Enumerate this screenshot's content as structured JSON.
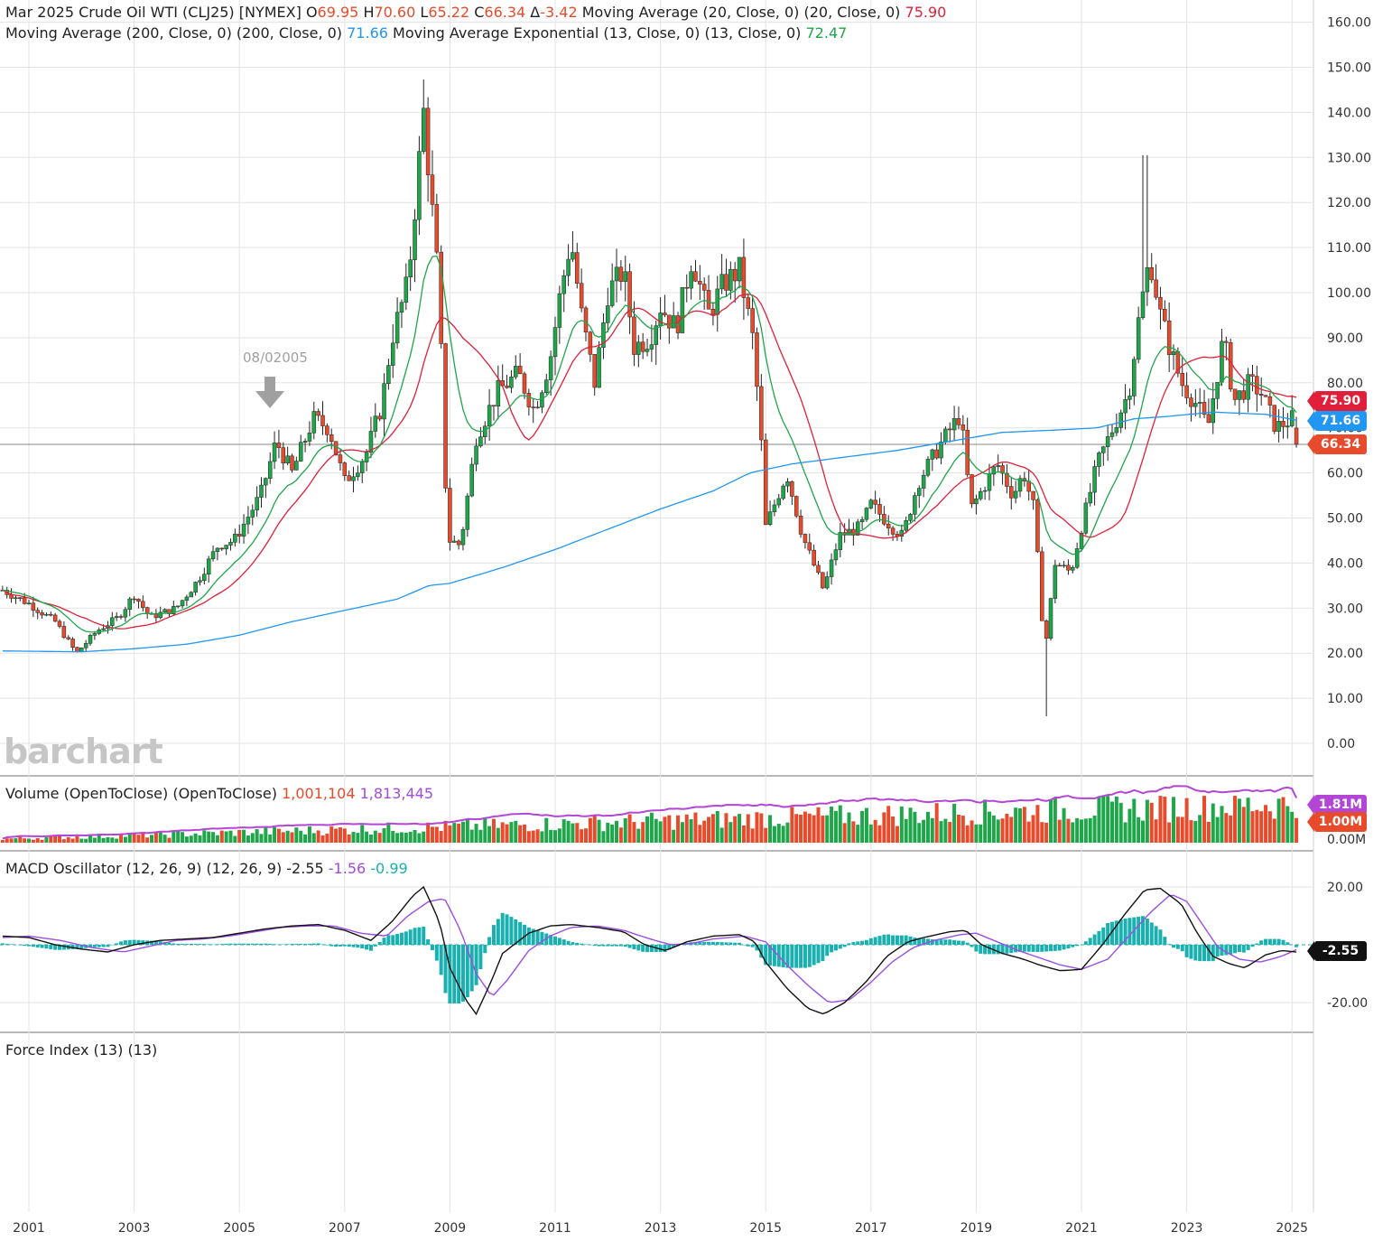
{
  "header": {
    "instrument": "Mar 2025 Crude Oil WTI (CLJ25) [NYMEX]",
    "open_label": "O",
    "open": "69.95",
    "high_label": "H",
    "high": "70.60",
    "low_label": "L",
    "low": "65.22",
    "close_label": "C",
    "close": "66.34",
    "change_label": "Δ",
    "change": "-3.42",
    "ma20_label": "Moving Average (20, Close, 0)  (20, Close, 0)",
    "ma20_value": "75.90",
    "ma200_label": "Moving Average (200, Close, 0)  (200, Close, 0)",
    "ma200_value": "71.66",
    "ema13_label": "Moving Average Exponential (13, Close, 0)  (13, Close, 0)",
    "ema13_value": "72.47"
  },
  "annotation": {
    "text": "08/02005"
  },
  "logo": "barchart",
  "volume_panel": {
    "label": "Volume (OpenToClose)  (OpenToClose)",
    "value1": "1,001,104",
    "value2": "1,813,445"
  },
  "macd_panel": {
    "label": "MACD Oscillator (12, 26, 9)  (12, 26, 9)",
    "value1": "-2.55",
    "value2": "-1.56",
    "value3": "-0.99"
  },
  "force_panel": {
    "label": "Force Index (13)  (13)"
  },
  "price_tags": {
    "ma20": "75.90",
    "ma200": "71.66",
    "close": "66.34"
  },
  "volume_tags": {
    "avg": "1.81M",
    "current": "1.00M",
    "zero": "0.00M"
  },
  "macd_tag": "-2.55",
  "colors": {
    "up": "#1fa64a",
    "down": "#e84b2c",
    "ma20": "#e0203a",
    "ma200": "#2196f3",
    "ema13": "#1fa64a",
    "vol_avg": "#b446d6",
    "macd": "#111111",
    "signal": "#9b4fe0",
    "hist": "#1ab0b0"
  },
  "chart_data": {
    "type": "candlestick",
    "timeframe": "monthly",
    "x_ticks": [
      "2001",
      "2003",
      "2005",
      "2007",
      "2009",
      "2011",
      "2013",
      "2015",
      "2017",
      "2019",
      "2021",
      "2023",
      "2025"
    ],
    "price_axis": {
      "ticks": [
        "0.00",
        "10.00",
        "20.00",
        "30.00",
        "40.00",
        "50.00",
        "60.00",
        "70.00",
        "80.00",
        "90.00",
        "100.00",
        "110.00",
        "120.00",
        "130.00",
        "140.00",
        "150.00",
        "160.00"
      ],
      "ylim": [
        0,
        160
      ]
    },
    "volume_axis": {
      "ticks": [
        "0.00M"
      ]
    },
    "macd_axis": {
      "ticks": [
        "20.00",
        "-20.00"
      ],
      "ylim": [
        -30,
        25
      ]
    },
    "close_path": [
      [
        2000.5,
        34
      ],
      [
        2001.0,
        31
      ],
      [
        2001.5,
        27
      ],
      [
        2001.9,
        20
      ],
      [
        2002.3,
        25
      ],
      [
        2002.7,
        28
      ],
      [
        2003.0,
        33
      ],
      [
        2003.3,
        28
      ],
      [
        2003.8,
        30
      ],
      [
        2004.2,
        36
      ],
      [
        2004.6,
        44
      ],
      [
        2004.9,
        45
      ],
      [
        2005.4,
        55
      ],
      [
        2005.7,
        67
      ],
      [
        2006.0,
        60
      ],
      [
        2006.4,
        72
      ],
      [
        2006.7,
        70
      ],
      [
        2007.0,
        58
      ],
      [
        2007.4,
        64
      ],
      [
        2007.7,
        75
      ],
      [
        2007.9,
        90
      ],
      [
        2008.2,
        102
      ],
      [
        2008.5,
        140
      ],
      [
        2008.8,
        100
      ],
      [
        2008.9,
        60
      ],
      [
        2009.0,
        45
      ],
      [
        2009.2,
        44
      ],
      [
        2009.5,
        68
      ],
      [
        2009.9,
        78
      ],
      [
        2010.3,
        82
      ],
      [
        2010.6,
        74
      ],
      [
        2010.9,
        85
      ],
      [
        2011.1,
        100
      ],
      [
        2011.3,
        112
      ],
      [
        2011.5,
        95
      ],
      [
        2011.75,
        80
      ],
      [
        2012.0,
        100
      ],
      [
        2012.3,
        105
      ],
      [
        2012.5,
        88
      ],
      [
        2012.8,
        90
      ],
      [
        2013.0,
        97
      ],
      [
        2013.3,
        92
      ],
      [
        2013.6,
        108
      ],
      [
        2013.9,
        95
      ],
      [
        2014.2,
        102
      ],
      [
        2014.5,
        105
      ],
      [
        2014.75,
        90
      ],
      [
        2014.9,
        70
      ],
      [
        2015.0,
        48
      ],
      [
        2015.4,
        60
      ],
      [
        2015.7,
        46
      ],
      [
        2015.9,
        40
      ],
      [
        2016.1,
        34
      ],
      [
        2016.4,
        46
      ],
      [
        2016.8,
        48
      ],
      [
        2017.0,
        53
      ],
      [
        2017.4,
        48
      ],
      [
        2017.6,
        46
      ],
      [
        2017.9,
        58
      ],
      [
        2018.3,
        66
      ],
      [
        2018.7,
        73
      ],
      [
        2018.9,
        52
      ],
      [
        2019.1,
        56
      ],
      [
        2019.4,
        62
      ],
      [
        2019.7,
        55
      ],
      [
        2019.9,
        60
      ],
      [
        2020.1,
        52
      ],
      [
        2020.3,
        20
      ],
      [
        2020.5,
        40
      ],
      [
        2020.8,
        38
      ],
      [
        2021.0,
        48
      ],
      [
        2021.3,
        62
      ],
      [
        2021.6,
        70
      ],
      [
        2021.9,
        78
      ],
      [
        2022.1,
        95
      ],
      [
        2022.3,
        108
      ],
      [
        2022.5,
        95
      ],
      [
        2022.7,
        87
      ],
      [
        2022.9,
        80
      ],
      [
        2023.2,
        75
      ],
      [
        2023.4,
        70
      ],
      [
        2023.7,
        90
      ],
      [
        2023.9,
        76
      ],
      [
        2024.2,
        80
      ],
      [
        2024.4,
        78
      ],
      [
        2024.7,
        70
      ],
      [
        2025.0,
        72
      ],
      [
        2025.1,
        66.34
      ]
    ],
    "ma200_path": [
      [
        2000.5,
        20.5
      ],
      [
        2002.0,
        20.3
      ],
      [
        2003.0,
        21
      ],
      [
        2004.0,
        22
      ],
      [
        2005.0,
        24
      ],
      [
        2006.0,
        27
      ],
      [
        2007.0,
        29.5
      ],
      [
        2008.0,
        32
      ],
      [
        2008.6,
        35
      ],
      [
        2009.0,
        35.5
      ],
      [
        2010.0,
        39
      ],
      [
        2011.0,
        43
      ],
      [
        2012.0,
        47.5
      ],
      [
        2013.0,
        52
      ],
      [
        2014.0,
        56
      ],
      [
        2014.7,
        60
      ],
      [
        2015.5,
        62
      ],
      [
        2016.5,
        63.5
      ],
      [
        2017.5,
        65
      ],
      [
        2018.5,
        67
      ],
      [
        2019.5,
        69
      ],
      [
        2020.5,
        69.5
      ],
      [
        2021.3,
        70
      ],
      [
        2022.0,
        72
      ],
      [
        2022.6,
        72.5
      ],
      [
        2023.5,
        73.5
      ],
      [
        2024.5,
        73
      ],
      [
        2025.1,
        71.66
      ]
    ],
    "series": [
      {
        "name": "Moving Average (20, Close, 0)",
        "last": 75.9
      },
      {
        "name": "Moving Average (200, Close, 0)",
        "last": 71.66
      },
      {
        "name": "Moving Average Exponential (13, Close, 0)",
        "last": 72.47
      },
      {
        "name": "Volume",
        "last": 1001104
      },
      {
        "name": "Volume average",
        "last": 1813445
      },
      {
        "name": "MACD",
        "last": -2.55
      },
      {
        "name": "MACD signal",
        "last": -1.56
      },
      {
        "name": "MACD histogram",
        "last": -0.99
      }
    ],
    "macd_path": [
      [
        2000.5,
        3
      ],
      [
        2001.0,
        2.5
      ],
      [
        2001.5,
        0
      ],
      [
        2002.0,
        -1.5
      ],
      [
        2002.5,
        -2.5
      ],
      [
        2003.0,
        0
      ],
      [
        2003.5,
        1.5
      ],
      [
        2004.0,
        2
      ],
      [
        2004.5,
        2.5
      ],
      [
        2005.0,
        4
      ],
      [
        2005.5,
        5.5
      ],
      [
        2006.0,
        6.5
      ],
      [
        2006.5,
        7
      ],
      [
        2007.0,
        5
      ],
      [
        2007.5,
        1.5
      ],
      [
        2007.9,
        8
      ],
      [
        2008.3,
        17
      ],
      [
        2008.5,
        20
      ],
      [
        2008.8,
        8
      ],
      [
        2009.0,
        -8
      ],
      [
        2009.3,
        -19
      ],
      [
        2009.5,
        -24
      ],
      [
        2009.8,
        -12
      ],
      [
        2010.0,
        -3
      ],
      [
        2010.5,
        4
      ],
      [
        2010.9,
        6.5
      ],
      [
        2011.3,
        7
      ],
      [
        2011.8,
        6
      ],
      [
        2012.3,
        4.5
      ],
      [
        2012.7,
        0
      ],
      [
        2013.1,
        -2
      ],
      [
        2013.5,
        1
      ],
      [
        2014.0,
        3
      ],
      [
        2014.5,
        3.5
      ],
      [
        2014.8,
        1
      ],
      [
        2015.0,
        -6
      ],
      [
        2015.4,
        -15
      ],
      [
        2015.8,
        -22
      ],
      [
        2016.1,
        -24
      ],
      [
        2016.5,
        -20
      ],
      [
        2016.9,
        -13
      ],
      [
        2017.3,
        -4
      ],
      [
        2017.7,
        1
      ],
      [
        2018.0,
        2.5
      ],
      [
        2018.5,
        4.5
      ],
      [
        2018.8,
        5
      ],
      [
        2019.1,
        0
      ],
      [
        2019.5,
        -3
      ],
      [
        2019.9,
        -5
      ],
      [
        2020.2,
        -7
      ],
      [
        2020.6,
        -9
      ],
      [
        2021.0,
        -8.5
      ],
      [
        2021.4,
        0
      ],
      [
        2021.8,
        10
      ],
      [
        2022.2,
        19
      ],
      [
        2022.5,
        19.5
      ],
      [
        2022.9,
        14
      ],
      [
        2023.2,
        4
      ],
      [
        2023.5,
        -4
      ],
      [
        2023.8,
        -6.5
      ],
      [
        2024.1,
        -8
      ],
      [
        2024.5,
        -3.5
      ],
      [
        2024.8,
        -2
      ],
      [
        2025.1,
        -2.55
      ]
    ],
    "signal_path": [
      [
        2000.5,
        2.5
      ],
      [
        2001.0,
        3
      ],
      [
        2001.6,
        1.5
      ],
      [
        2002.2,
        -1
      ],
      [
        2002.8,
        -2.5
      ],
      [
        2003.3,
        -0.5
      ],
      [
        2003.8,
        1.5
      ],
      [
        2004.3,
        2
      ],
      [
        2004.8,
        3
      ],
      [
        2005.3,
        4.5
      ],
      [
        2005.8,
        6
      ],
      [
        2006.3,
        6.5
      ],
      [
        2006.8,
        6.5
      ],
      [
        2007.3,
        4
      ],
      [
        2007.8,
        3
      ],
      [
        2008.2,
        10
      ],
      [
        2008.6,
        15
      ],
      [
        2008.9,
        16
      ],
      [
        2009.2,
        5
      ],
      [
        2009.5,
        -10
      ],
      [
        2009.8,
        -18
      ],
      [
        2010.1,
        -12
      ],
      [
        2010.5,
        -2
      ],
      [
        2010.9,
        3
      ],
      [
        2011.3,
        6
      ],
      [
        2011.8,
        6.5
      ],
      [
        2012.3,
        5
      ],
      [
        2012.8,
        2
      ],
      [
        2013.2,
        0
      ],
      [
        2013.6,
        0.5
      ],
      [
        2014.0,
        2
      ],
      [
        2014.6,
        3
      ],
      [
        2015.0,
        1
      ],
      [
        2015.4,
        -7
      ],
      [
        2015.8,
        -14
      ],
      [
        2016.2,
        -20
      ],
      [
        2016.6,
        -19
      ],
      [
        2017.0,
        -13
      ],
      [
        2017.4,
        -6
      ],
      [
        2017.8,
        -1
      ],
      [
        2018.2,
        1.5
      ],
      [
        2018.7,
        3.5
      ],
      [
        2019.0,
        4
      ],
      [
        2019.4,
        1
      ],
      [
        2019.8,
        -2
      ],
      [
        2020.2,
        -4.5
      ],
      [
        2020.6,
        -7
      ],
      [
        2021.0,
        -8.5
      ],
      [
        2021.5,
        -5
      ],
      [
        2021.9,
        3
      ],
      [
        2022.3,
        11
      ],
      [
        2022.7,
        17.5
      ],
      [
        2023.0,
        15
      ],
      [
        2023.3,
        7
      ],
      [
        2023.6,
        -1
      ],
      [
        2024.0,
        -5
      ],
      [
        2024.4,
        -6
      ],
      [
        2024.8,
        -4
      ],
      [
        2025.1,
        -1.56
      ]
    ]
  }
}
